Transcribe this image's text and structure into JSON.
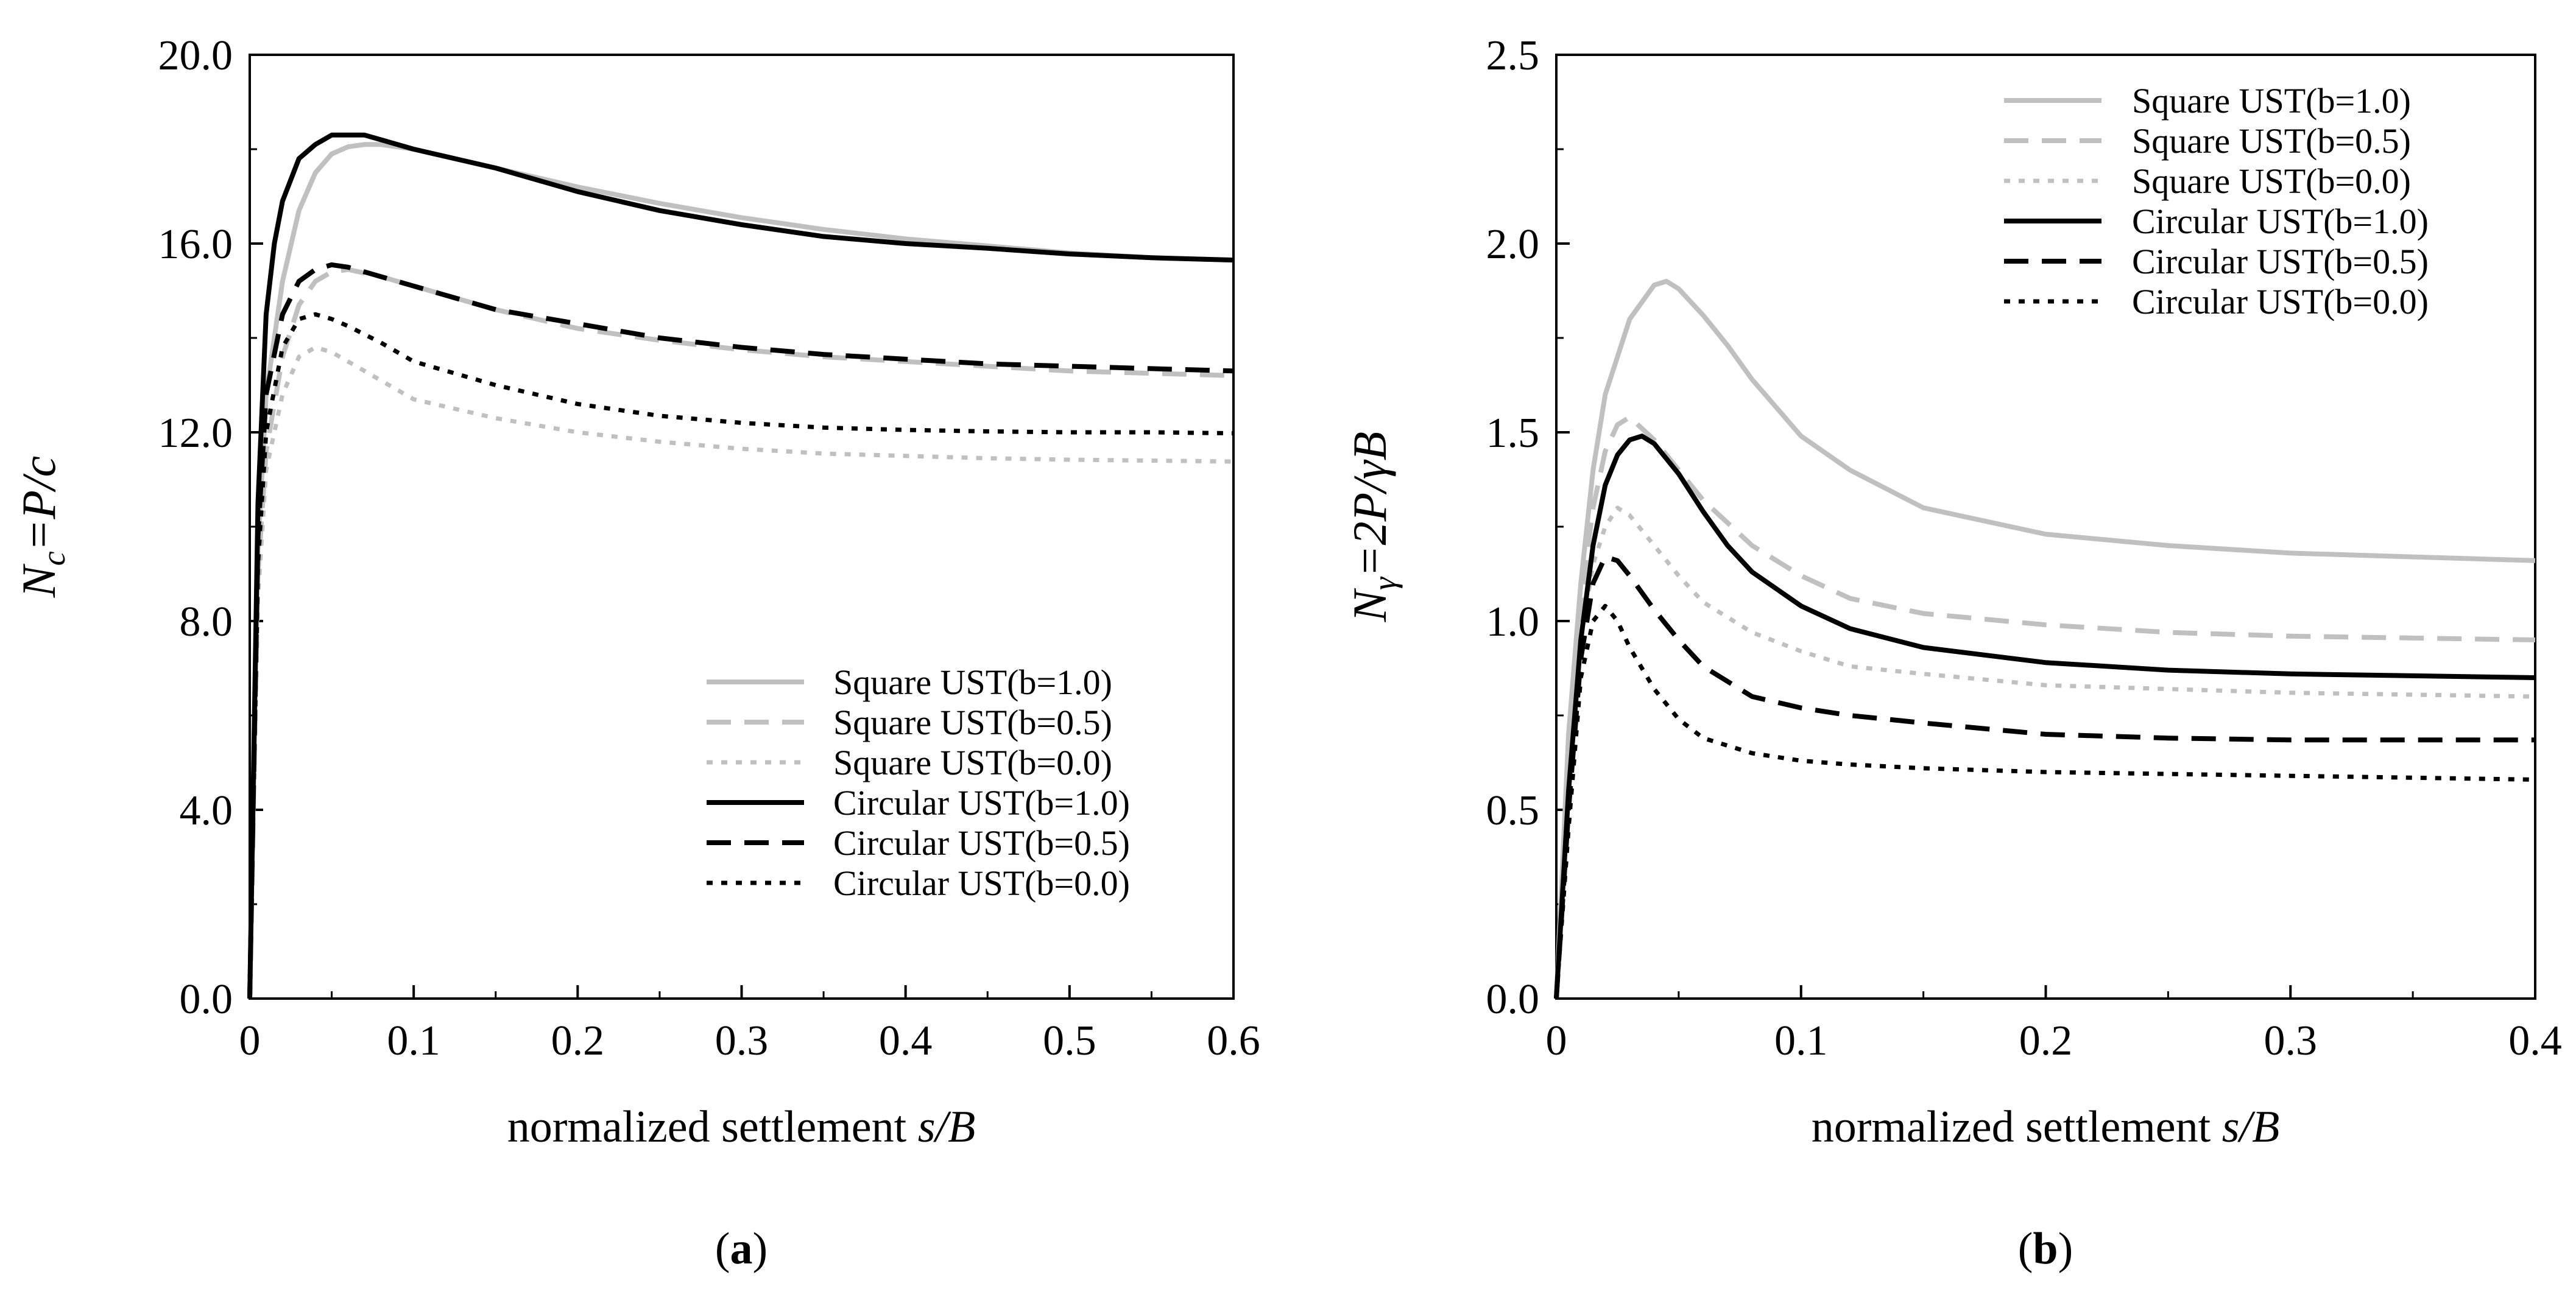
{
  "chart_data": [
    {
      "id": "a",
      "type": "line",
      "caption_label": "a",
      "xlabel": "normalized settlement",
      "xlabel_var": "s/B",
      "ylabel": "N_c=P/c",
      "ylabel_parts": {
        "main": "N",
        "sub": "c",
        "rest": "=P/c"
      },
      "xlim": [
        0,
        0.6
      ],
      "ylim": [
        0,
        20
      ],
      "xticks": [
        {
          "v": 0,
          "label": "0"
        },
        {
          "v": 0.1,
          "label": "0.1"
        },
        {
          "v": 0.2,
          "label": "0.2"
        },
        {
          "v": 0.3,
          "label": "0.3"
        },
        {
          "v": 0.4,
          "label": "0.4"
        },
        {
          "v": 0.5,
          "label": "0.5"
        },
        {
          "v": 0.6,
          "label": "0.6"
        }
      ],
      "yticks": [
        {
          "v": 0,
          "label": "0.0"
        },
        {
          "v": 4,
          "label": "4.0"
        },
        {
          "v": 8,
          "label": "8.0"
        },
        {
          "v": 12,
          "label": "12.0"
        },
        {
          "v": 16,
          "label": "16.0"
        },
        {
          "v": 20,
          "label": "20.0"
        }
      ],
      "legend_position": "bottom-right",
      "series": [
        {
          "name": "Square UST(b=1.0)",
          "color": "#c0c0c0",
          "style": "solid",
          "x": [
            0,
            0.005,
            0.01,
            0.02,
            0.03,
            0.04,
            0.05,
            0.06,
            0.07,
            0.08,
            0.1,
            0.15,
            0.2,
            0.25,
            0.3,
            0.35,
            0.4,
            0.45,
            0.5,
            0.55,
            0.6
          ],
          "y": [
            0,
            9.5,
            12.8,
            15.2,
            16.7,
            17.5,
            17.9,
            18.05,
            18.1,
            18.1,
            18.0,
            17.6,
            17.2,
            16.85,
            16.55,
            16.3,
            16.1,
            15.95,
            15.8,
            15.7,
            15.65
          ]
        },
        {
          "name": "Square UST(b=0.5)",
          "color": "#c0c0c0",
          "style": "dash",
          "x": [
            0,
            0.005,
            0.01,
            0.02,
            0.03,
            0.04,
            0.05,
            0.06,
            0.08,
            0.1,
            0.15,
            0.2,
            0.25,
            0.3,
            0.35,
            0.4,
            0.45,
            0.5,
            0.55,
            0.6
          ],
          "y": [
            0,
            9.0,
            11.6,
            13.6,
            14.7,
            15.2,
            15.4,
            15.45,
            15.3,
            15.1,
            14.6,
            14.2,
            13.95,
            13.75,
            13.6,
            13.5,
            13.4,
            13.3,
            13.25,
            13.2
          ]
        },
        {
          "name": "Square UST(b=0.0)",
          "color": "#c0c0c0",
          "style": "dot",
          "x": [
            0,
            0.005,
            0.01,
            0.02,
            0.03,
            0.04,
            0.05,
            0.06,
            0.08,
            0.1,
            0.15,
            0.2,
            0.25,
            0.3,
            0.35,
            0.4,
            0.45,
            0.5,
            0.55,
            0.6
          ],
          "y": [
            0,
            8.5,
            11.2,
            12.8,
            13.6,
            13.8,
            13.7,
            13.5,
            13.1,
            12.7,
            12.3,
            12.0,
            11.8,
            11.65,
            11.55,
            11.5,
            11.45,
            11.42,
            11.4,
            11.38
          ]
        },
        {
          "name": "Circular UST(b=1.0)",
          "color": "#000000",
          "style": "solid",
          "x": [
            0,
            0.005,
            0.01,
            0.015,
            0.02,
            0.03,
            0.04,
            0.05,
            0.06,
            0.07,
            0.08,
            0.1,
            0.15,
            0.2,
            0.25,
            0.3,
            0.35,
            0.4,
            0.45,
            0.5,
            0.55,
            0.6
          ],
          "y": [
            0,
            10.5,
            14.5,
            16.0,
            16.9,
            17.8,
            18.1,
            18.3,
            18.3,
            18.3,
            18.2,
            18.0,
            17.6,
            17.1,
            16.7,
            16.4,
            16.15,
            16.0,
            15.9,
            15.78,
            15.7,
            15.65
          ]
        },
        {
          "name": "Circular UST(b=0.5)",
          "color": "#000000",
          "style": "dash",
          "x": [
            0,
            0.005,
            0.01,
            0.02,
            0.03,
            0.04,
            0.05,
            0.06,
            0.08,
            0.1,
            0.15,
            0.2,
            0.25,
            0.3,
            0.35,
            0.4,
            0.45,
            0.5,
            0.55,
            0.6
          ],
          "y": [
            0,
            9.8,
            12.8,
            14.5,
            15.2,
            15.45,
            15.55,
            15.5,
            15.3,
            15.1,
            14.6,
            14.3,
            14.0,
            13.8,
            13.65,
            13.55,
            13.45,
            13.4,
            13.35,
            13.3
          ]
        },
        {
          "name": "Circular UST(b=0.0)",
          "color": "#000000",
          "style": "dot",
          "x": [
            0,
            0.005,
            0.01,
            0.02,
            0.03,
            0.04,
            0.05,
            0.06,
            0.08,
            0.1,
            0.15,
            0.2,
            0.25,
            0.3,
            0.35,
            0.4,
            0.45,
            0.5,
            0.55,
            0.6
          ],
          "y": [
            0,
            9.2,
            12.0,
            13.8,
            14.4,
            14.5,
            14.4,
            14.25,
            13.9,
            13.5,
            13.0,
            12.6,
            12.35,
            12.2,
            12.1,
            12.05,
            12.02,
            12.0,
            12.0,
            11.98
          ]
        }
      ]
    },
    {
      "id": "b",
      "type": "line",
      "caption_label": "b",
      "xlabel": "normalized settlement",
      "xlabel_var": "s/B",
      "ylabel": "Nγ=2P/γB",
      "ylabel_parts": {
        "main": "N",
        "sub": "γ",
        "rest": "=2P/γB"
      },
      "xlim": [
        0,
        0.4
      ],
      "ylim": [
        0,
        2.5
      ],
      "xticks": [
        {
          "v": 0,
          "label": "0"
        },
        {
          "v": 0.1,
          "label": "0.1"
        },
        {
          "v": 0.2,
          "label": "0.2"
        },
        {
          "v": 0.3,
          "label": "0.3"
        },
        {
          "v": 0.4,
          "label": "0.4"
        }
      ],
      "yticks": [
        {
          "v": 0,
          "label": "0.0"
        },
        {
          "v": 0.5,
          "label": "0.5"
        },
        {
          "v": 1.0,
          "label": "1.0"
        },
        {
          "v": 1.5,
          "label": "1.5"
        },
        {
          "v": 2.0,
          "label": "2.0"
        },
        {
          "v": 2.5,
          "label": "2.5"
        }
      ],
      "legend_position": "top-right",
      "series": [
        {
          "name": "Square UST(b=1.0)",
          "color": "#c0c0c0",
          "style": "solid",
          "x": [
            0,
            0.005,
            0.01,
            0.015,
            0.02,
            0.03,
            0.04,
            0.045,
            0.05,
            0.06,
            0.07,
            0.08,
            0.1,
            0.12,
            0.15,
            0.2,
            0.25,
            0.3,
            0.35,
            0.4
          ],
          "y": [
            0,
            0.7,
            1.1,
            1.4,
            1.6,
            1.8,
            1.89,
            1.9,
            1.88,
            1.81,
            1.73,
            1.64,
            1.49,
            1.4,
            1.3,
            1.23,
            1.2,
            1.18,
            1.17,
            1.16
          ]
        },
        {
          "name": "Square UST(b=0.5)",
          "color": "#c0c0c0",
          "style": "dash",
          "x": [
            0,
            0.005,
            0.01,
            0.015,
            0.02,
            0.025,
            0.03,
            0.04,
            0.05,
            0.06,
            0.08,
            0.1,
            0.12,
            0.15,
            0.2,
            0.25,
            0.3,
            0.35,
            0.4
          ],
          "y": [
            0,
            0.65,
            1.05,
            1.3,
            1.45,
            1.52,
            1.54,
            1.48,
            1.4,
            1.32,
            1.2,
            1.12,
            1.06,
            1.02,
            0.99,
            0.97,
            0.96,
            0.955,
            0.95
          ]
        },
        {
          "name": "Square UST(b=0.0)",
          "color": "#c0c0c0",
          "style": "dot",
          "x": [
            0,
            0.005,
            0.01,
            0.015,
            0.02,
            0.025,
            0.03,
            0.04,
            0.05,
            0.06,
            0.08,
            0.1,
            0.12,
            0.15,
            0.2,
            0.25,
            0.3,
            0.35,
            0.4
          ],
          "y": [
            0,
            0.6,
            0.95,
            1.15,
            1.25,
            1.3,
            1.28,
            1.2,
            1.12,
            1.05,
            0.97,
            0.92,
            0.88,
            0.86,
            0.83,
            0.82,
            0.81,
            0.805,
            0.8
          ]
        },
        {
          "name": "Circular UST(b=1.0)",
          "color": "#000000",
          "style": "solid",
          "x": [
            0,
            0.005,
            0.01,
            0.015,
            0.02,
            0.025,
            0.03,
            0.035,
            0.04,
            0.05,
            0.06,
            0.07,
            0.08,
            0.1,
            0.12,
            0.15,
            0.2,
            0.25,
            0.3,
            0.35,
            0.4
          ],
          "y": [
            0,
            0.55,
            0.95,
            1.2,
            1.36,
            1.44,
            1.48,
            1.49,
            1.47,
            1.39,
            1.29,
            1.2,
            1.13,
            1.04,
            0.98,
            0.93,
            0.89,
            0.87,
            0.86,
            0.855,
            0.85
          ]
        },
        {
          "name": "Circular UST(b=0.5)",
          "color": "#000000",
          "style": "dash",
          "x": [
            0,
            0.005,
            0.01,
            0.015,
            0.02,
            0.025,
            0.03,
            0.04,
            0.05,
            0.06,
            0.08,
            0.1,
            0.12,
            0.15,
            0.2,
            0.25,
            0.3,
            0.35,
            0.4
          ],
          "y": [
            0,
            0.5,
            0.9,
            1.1,
            1.17,
            1.16,
            1.12,
            1.03,
            0.95,
            0.88,
            0.8,
            0.77,
            0.75,
            0.73,
            0.7,
            0.69,
            0.685,
            0.685,
            0.685
          ]
        },
        {
          "name": "Circular UST(b=0.0)",
          "color": "#000000",
          "style": "dot",
          "x": [
            0,
            0.005,
            0.01,
            0.015,
            0.02,
            0.025,
            0.03,
            0.04,
            0.05,
            0.06,
            0.08,
            0.1,
            0.12,
            0.15,
            0.2,
            0.25,
            0.3,
            0.35,
            0.4
          ],
          "y": [
            0,
            0.45,
            0.85,
            1.0,
            1.04,
            1.0,
            0.93,
            0.82,
            0.74,
            0.69,
            0.65,
            0.63,
            0.62,
            0.61,
            0.6,
            0.595,
            0.59,
            0.585,
            0.58
          ]
        }
      ]
    }
  ]
}
